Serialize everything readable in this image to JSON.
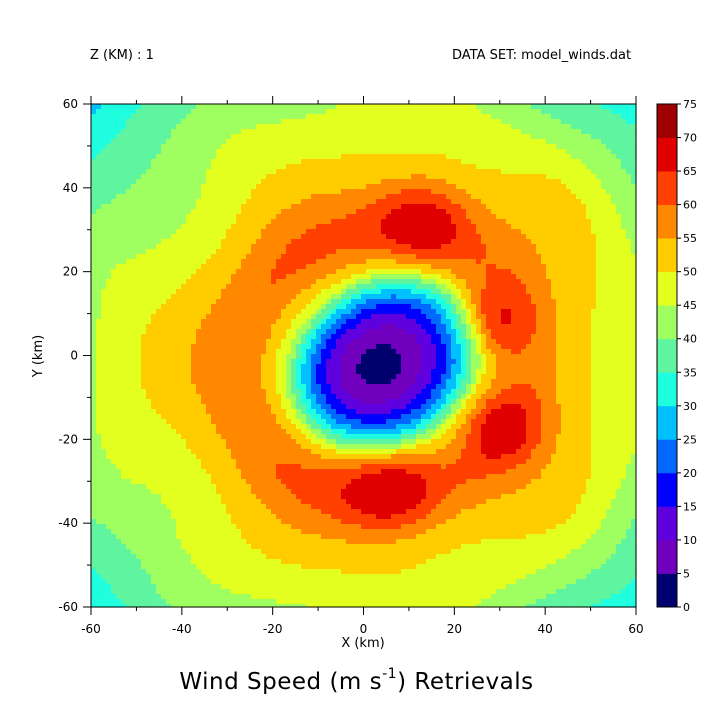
{
  "header": {
    "left": "Z (KM) : 1",
    "right": "DATA SET: model_winds.dat"
  },
  "title": {
    "prefix": "Wind Speed (m s",
    "sup": "-1",
    "suffix": ") Retrievals"
  },
  "chart_data": {
    "type": "heatmap",
    "xlabel": "X (km)",
    "ylabel": "Y (km)",
    "xlim": [
      -60,
      60
    ],
    "ylim": [
      -60,
      60
    ],
    "x_ticks": [
      "-60",
      "-40",
      "-20",
      "0",
      "20",
      "40",
      "60"
    ],
    "y_ticks": [
      "60",
      "40",
      "20",
      "0",
      "-20",
      "-40",
      "-60"
    ],
    "colorbar": {
      "levels": [
        0,
        5,
        10,
        15,
        20,
        25,
        30,
        35,
        40,
        45,
        50,
        55,
        60,
        65,
        70,
        75
      ],
      "labels": [
        "0",
        "5",
        "10",
        "15",
        "20",
        "25",
        "30",
        "35",
        "40",
        "45",
        "50",
        "55",
        "60",
        "65",
        "70",
        "75"
      ],
      "colors": [
        "#00006f",
        "#7000bd",
        "#5f00df",
        "#0000ff",
        "#0068ff",
        "#00c0ff",
        "#1fffe0",
        "#5ff5a0",
        "#a0ff60",
        "#e2ff20",
        "#ffcc00",
        "#ff8800",
        "#ff4000",
        "#e00000",
        "#9f0000"
      ]
    },
    "features": {
      "calm_center": [
        5,
        -2
      ],
      "minimum_speed_range": [
        0,
        5
      ],
      "maximum_speed_range": [
        65,
        70
      ],
      "maxima_centers": [
        [
          13,
          32
        ],
        [
          6,
          -31
        ],
        [
          30,
          -17
        ],
        [
          28,
          8
        ]
      ],
      "eye_radius_km": 22,
      "eyewall_radius_km": 30
    }
  }
}
